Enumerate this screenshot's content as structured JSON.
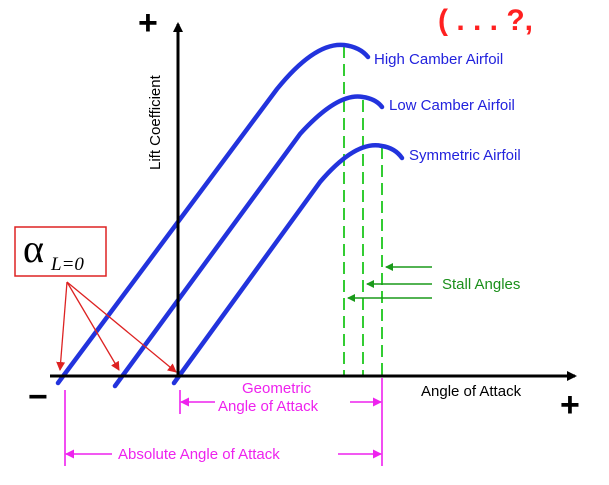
{
  "figure": {
    "y_axis_label": "Lift Coefficient",
    "x_axis_label": "Angle of Attack",
    "y_axis_plus": "+",
    "x_axis_plus": "+",
    "x_axis_minus": "−",
    "curves": [
      {
        "label": "High Camber Airfoil"
      },
      {
        "label": "Low Camber Airfoil"
      },
      {
        "label": "Symmetric Airfoil"
      }
    ],
    "stall_label": "Stall Angles",
    "geometric_label_line1": "Geometric",
    "geometric_label_line2": "Angle of Attack",
    "absolute_label": "Absolute Angle of Attack",
    "zero_lift_symbol": "α",
    "zero_lift_subscript": "L=0",
    "corner_marks": "( . . . ?,"
  },
  "colors": {
    "curve": "#2233dd",
    "stall": "#33cc33",
    "angle_dimension": "#ee22ee",
    "zero_lift_arrows": "#dd2222",
    "axes": "#000000"
  }
}
